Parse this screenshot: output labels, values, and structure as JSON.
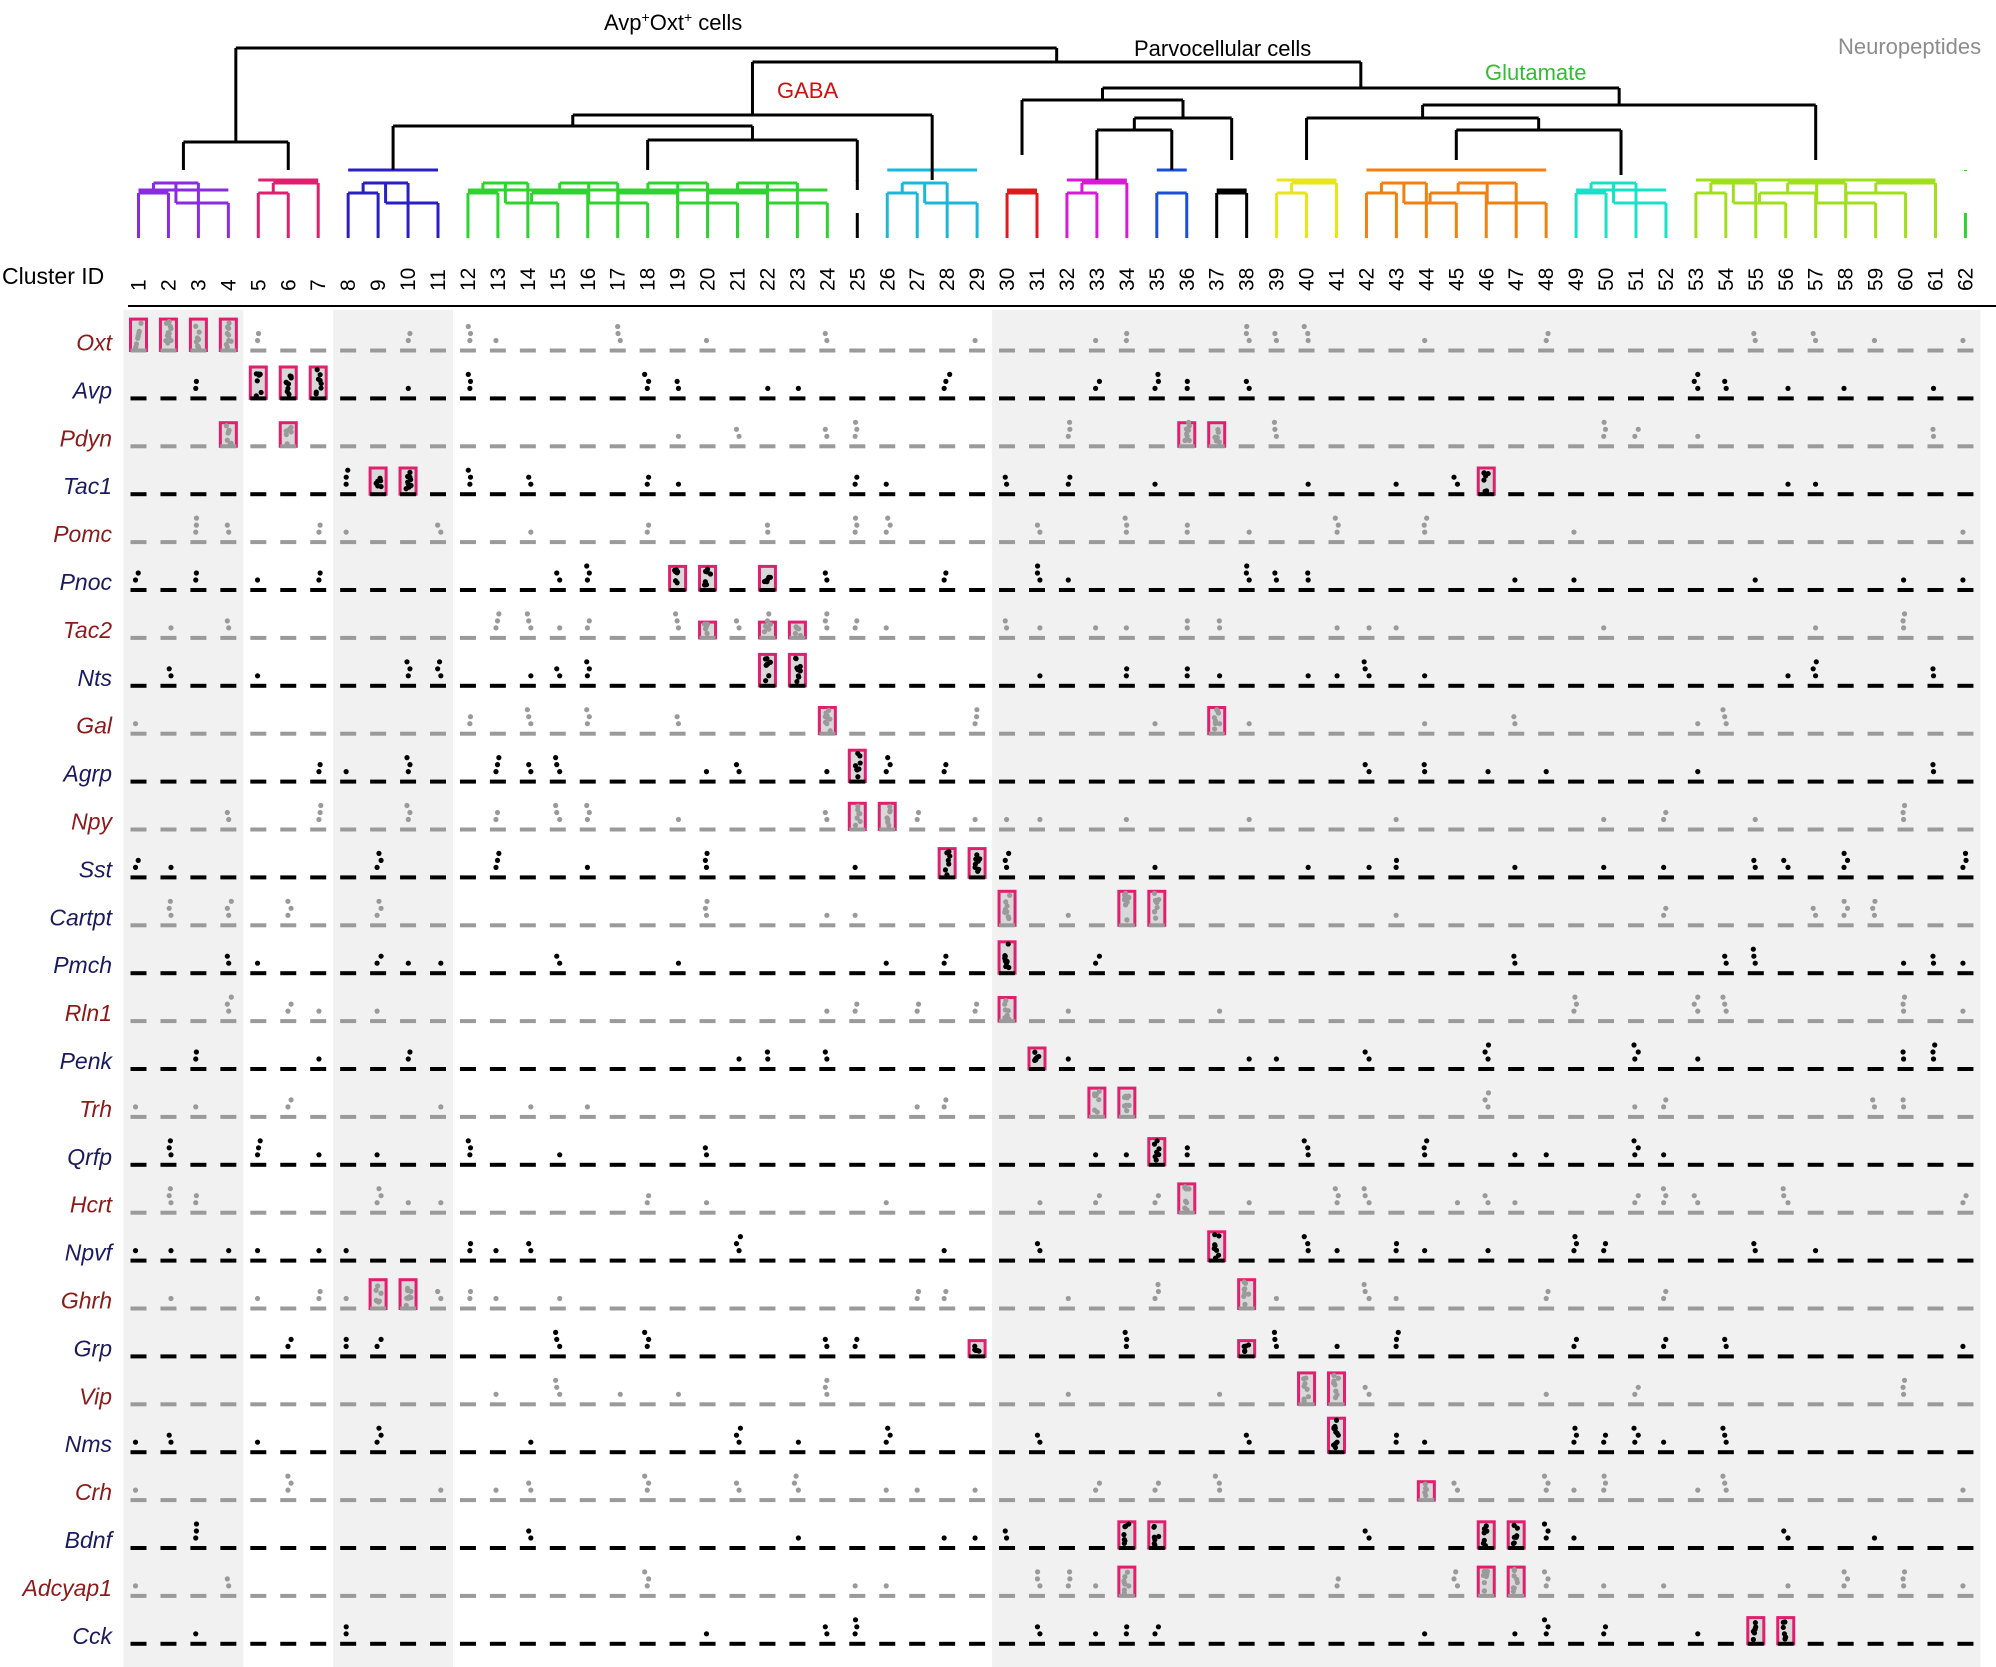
{
  "chart_data": {
    "type": "dotplot",
    "title": "",
    "xlabel": "Cluster ID",
    "ylabel": "",
    "clusters": [
      "1",
      "2",
      "3",
      "4",
      "5",
      "6",
      "7",
      "8",
      "9",
      "10",
      "11",
      "12",
      "13",
      "14",
      "15",
      "16",
      "17",
      "18",
      "19",
      "20",
      "21",
      "22",
      "23",
      "24",
      "25",
      "26",
      "27",
      "28",
      "29",
      "30",
      "31",
      "32",
      "33",
      "34",
      "35",
      "36",
      "37",
      "38",
      "39",
      "40",
      "41",
      "42",
      "43",
      "44",
      "45",
      "46",
      "47",
      "48",
      "49",
      "50",
      "51",
      "52",
      "53",
      "54",
      "55",
      "56",
      "57",
      "58",
      "59",
      "60",
      "61",
      "62"
    ],
    "genes": [
      "Oxt",
      "Avp",
      "Pdyn",
      "Tac1",
      "Pomc",
      "Pnoc",
      "Tac2",
      "Nts",
      "Gal",
      "Agrp",
      "Npy",
      "Sst",
      "Cartpt",
      "Pmch",
      "Rln1",
      "Penk",
      "Trh",
      "Qrfp",
      "Hcrt",
      "Npvf",
      "Ghrh",
      "Grp",
      "Vip",
      "Nms",
      "Crh",
      "Bdnf",
      "Adcyap1",
      "Cck"
    ],
    "gene_label_colors": [
      "#8b1a1a",
      "#1a1a5e",
      "#8b1a1a",
      "#1a1a5e",
      "#8b1a1a",
      "#1a1a5e",
      "#8b1a1a",
      "#1a1a5e",
      "#8b1a1a",
      "#1a1a5e",
      "#8b1a1a",
      "#1a1a5e",
      "#1a1a5e",
      "#1a1a5e",
      "#8b1a1a",
      "#1a1a5e",
      "#8b1a1a",
      "#1a1a5e",
      "#8b1a1a",
      "#1a1a5e",
      "#8b1a1a",
      "#1a1a5e",
      "#8b1a1a",
      "#1a1a5e",
      "#8b1a1a",
      "#1a1a5e",
      "#8b1a1a",
      "#1a1a5e"
    ],
    "dot_color_by_row": [
      "gray",
      "black",
      "gray",
      "black",
      "gray",
      "black",
      "gray",
      "black",
      "gray",
      "black",
      "gray",
      "black",
      "gray",
      "black",
      "gray",
      "black",
      "gray",
      "black",
      "gray",
      "black",
      "gray",
      "black",
      "gray",
      "black",
      "gray",
      "black",
      "gray",
      "black"
    ],
    "highlight_color": "#e0206e",
    "shaded_column_groups": [
      [
        1,
        4
      ],
      [
        8,
        11
      ],
      [
        30,
        62
      ]
    ],
    "groups": [
      {
        "label_parts": [
          "Avp",
          "+",
          "Oxt",
          "+",
          " cells"
        ],
        "color": "#000000"
      },
      {
        "label": "Parvocellular cells",
        "color": "#000000"
      },
      {
        "label": "GABA",
        "color": "#cc1111"
      },
      {
        "label": "Glutamate",
        "color": "#33bb33"
      },
      {
        "label": "Neuropeptides",
        "color": "#8c8c8c"
      }
    ],
    "dendrogram_leaf_colors": [
      {
        "clusters": [
          1,
          4
        ],
        "color": "#8a2be2"
      },
      {
        "clusters": [
          5,
          7
        ],
        "color": "#e0206e"
      },
      {
        "clusters": [
          8,
          11
        ],
        "color": "#2a1fc4"
      },
      {
        "clusters": [
          12,
          24
        ],
        "color": "#2ed42e"
      },
      {
        "clusters": [
          25,
          25
        ],
        "color": "#000000"
      },
      {
        "clusters": [
          26,
          29
        ],
        "color": "#1ab8d8"
      },
      {
        "clusters": [
          30,
          31
        ],
        "color": "#e01a1a"
      },
      {
        "clusters": [
          32,
          34
        ],
        "color": "#d81ad8"
      },
      {
        "clusters": [
          35,
          36
        ],
        "color": "#1a4fd8"
      },
      {
        "clusters": [
          37,
          38
        ],
        "color": "#000000"
      },
      {
        "clusters": [
          39,
          41
        ],
        "color": "#e6e61a"
      },
      {
        "clusters": [
          42,
          48
        ],
        "color": "#f08010"
      },
      {
        "clusters": [
          49,
          52
        ],
        "color": "#1ae0c8"
      },
      {
        "clusters": [
          53,
          61
        ],
        "color": "#a0e01a"
      },
      {
        "clusters": [
          62,
          62
        ],
        "color": "#2ed42e"
      }
    ],
    "dominant_expression": [
      {
        "gene": "Oxt",
        "clusters": [
          1,
          2,
          3,
          4
        ],
        "level": 0.9
      },
      {
        "gene": "Avp",
        "clusters": [
          5,
          6,
          7
        ],
        "level": 0.9
      },
      {
        "gene": "Pdyn",
        "clusters": [
          4,
          6,
          36,
          37
        ],
        "level": 0.6
      },
      {
        "gene": "Tac1",
        "clusters": [
          9,
          10,
          46
        ],
        "level": 0.7
      },
      {
        "gene": "Pnoc",
        "clusters": [
          19,
          20,
          22
        ],
        "level": 0.6
      },
      {
        "gene": "Tac2",
        "clusters": [
          20,
          22,
          23
        ],
        "level": 0.3
      },
      {
        "gene": "Nts",
        "clusters": [
          22,
          23
        ],
        "level": 0.9
      },
      {
        "gene": "Gal",
        "clusters": [
          24,
          37
        ],
        "level": 0.7
      },
      {
        "gene": "Agrp",
        "clusters": [
          25
        ],
        "level": 0.9
      },
      {
        "gene": "Npy",
        "clusters": [
          25,
          26
        ],
        "level": 0.7
      },
      {
        "gene": "Sst",
        "clusters": [
          28,
          29
        ],
        "level": 0.8
      },
      {
        "gene": "Cartpt",
        "clusters": [
          30,
          34,
          35
        ],
        "level": 1.0
      },
      {
        "gene": "Pmch",
        "clusters": [
          30
        ],
        "level": 0.9
      },
      {
        "gene": "Rln1",
        "clusters": [
          30
        ],
        "level": 0.6
      },
      {
        "gene": "Penk",
        "clusters": [
          31
        ],
        "level": 0.5
      },
      {
        "gene": "Trh",
        "clusters": [
          33,
          34
        ],
        "level": 0.8
      },
      {
        "gene": "Qrfp",
        "clusters": [
          35
        ],
        "level": 0.7
      },
      {
        "gene": "Hcrt",
        "clusters": [
          36
        ],
        "level": 0.8
      },
      {
        "gene": "Npvf",
        "clusters": [
          37
        ],
        "level": 0.8
      },
      {
        "gene": "Ghrh",
        "clusters": [
          38,
          9,
          10
        ],
        "level": 0.8
      },
      {
        "gene": "Grp",
        "clusters": [
          29,
          38
        ],
        "level": 0.3
      },
      {
        "gene": "Vip",
        "clusters": [
          40,
          41
        ],
        "level": 0.9
      },
      {
        "gene": "Nms",
        "clusters": [
          41
        ],
        "level": 1.0
      },
      {
        "gene": "Crh",
        "clusters": [
          44
        ],
        "level": 0.4
      },
      {
        "gene": "Bdnf",
        "clusters": [
          34,
          35,
          46,
          47
        ],
        "level": 0.7
      },
      {
        "gene": "Adcyap1",
        "clusters": [
          34,
          46,
          47
        ],
        "level": 0.8
      },
      {
        "gene": "Cck",
        "clusters": [
          55,
          56
        ],
        "level": 0.7
      }
    ]
  }
}
